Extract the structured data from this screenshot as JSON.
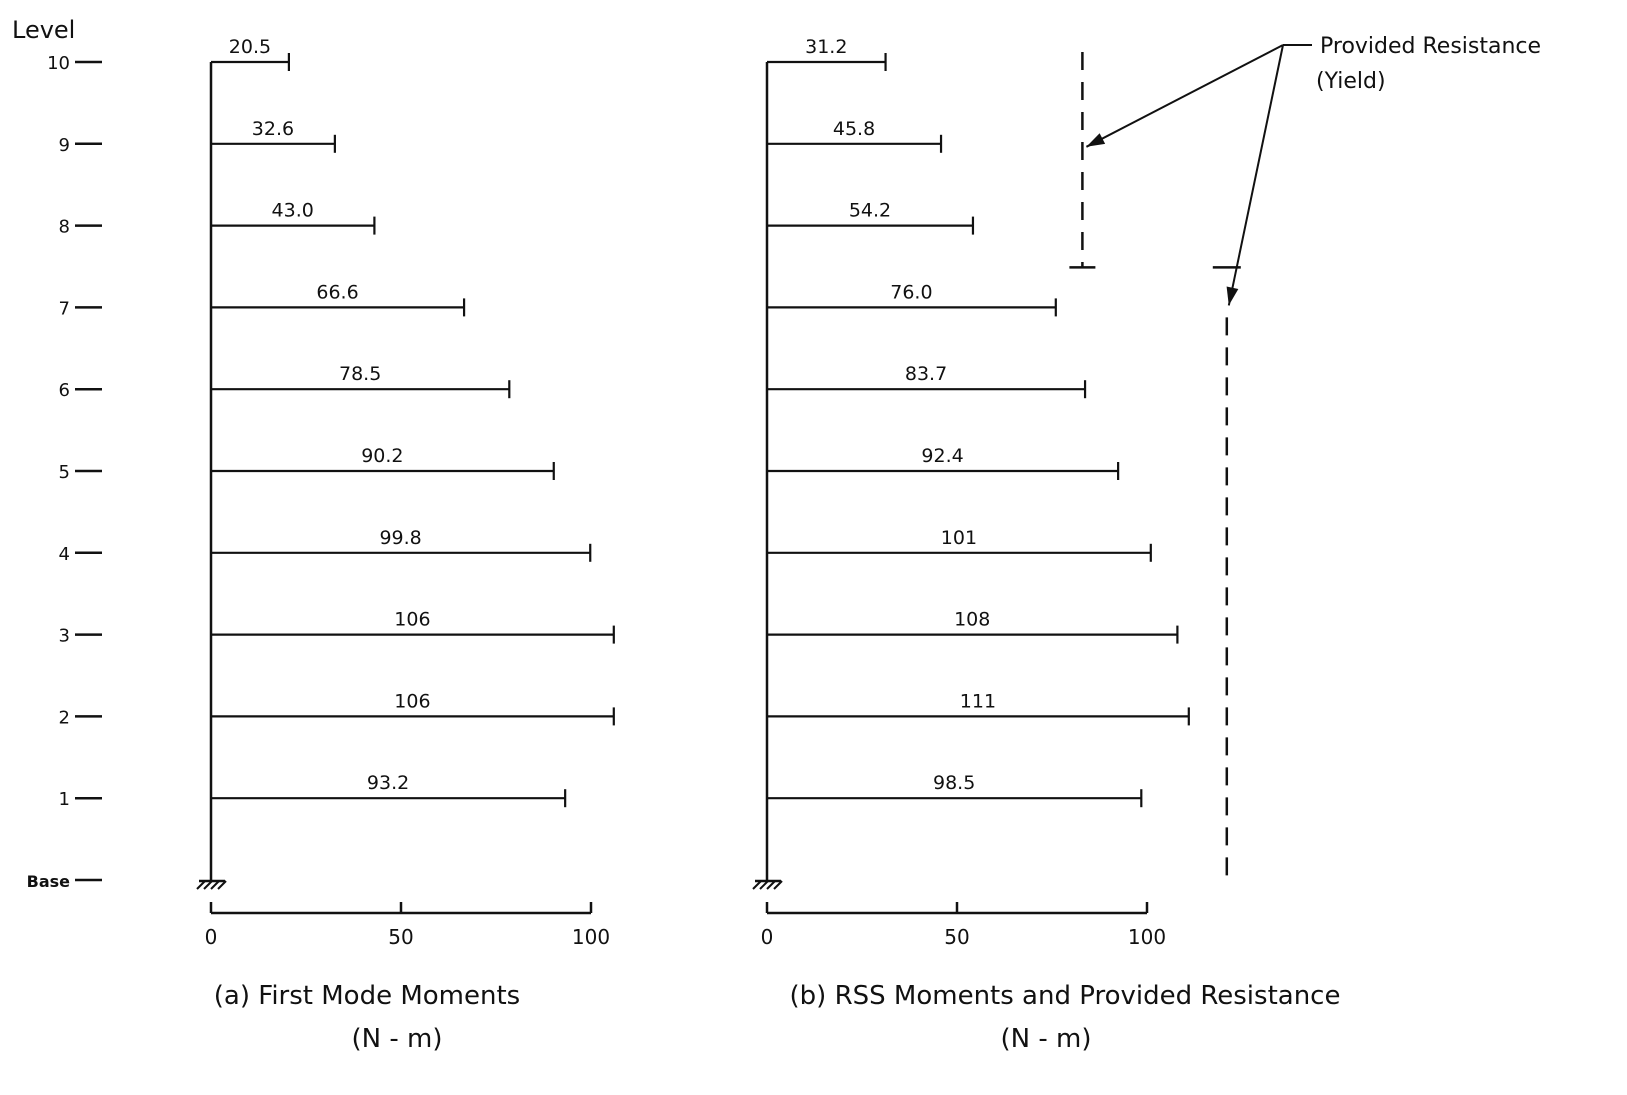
{
  "chart_data": [
    {
      "type": "bar",
      "orientation": "horizontal",
      "caption": "(a) First Mode Moments",
      "unit": "(N - m)",
      "ylabel": "Level",
      "levels": [
        "Base",
        "1",
        "2",
        "3",
        "4",
        "5",
        "6",
        "7",
        "8",
        "9",
        "10"
      ],
      "categories": [
        "1",
        "2",
        "3",
        "4",
        "5",
        "6",
        "7",
        "8",
        "9",
        "10"
      ],
      "values": [
        93.2,
        106,
        106,
        99.8,
        90.2,
        78.5,
        66.6,
        43.0,
        32.6,
        20.5
      ],
      "value_labels": [
        "93.2",
        "106",
        "106",
        "99.8",
        "90.2",
        "78.5",
        "66.6",
        "43.0",
        "32.6",
        "20.5"
      ],
      "xticks": [
        0,
        50,
        100
      ],
      "xtick_labels": [
        "0",
        "50",
        "100"
      ],
      "xlim": [
        0,
        100
      ]
    },
    {
      "type": "bar",
      "orientation": "horizontal",
      "caption": "(b) RSS Moments and Provided Resistance",
      "unit": "(N - m)",
      "categories": [
        "1",
        "2",
        "3",
        "4",
        "5",
        "6",
        "7",
        "8",
        "9",
        "10"
      ],
      "values": [
        98.5,
        111,
        108,
        101,
        92.4,
        83.7,
        76.0,
        54.2,
        45.8,
        31.2
      ],
      "value_labels": [
        "98.5",
        "111",
        "108",
        "101",
        "92.4",
        "83.7",
        "76.0",
        "54.2",
        "45.8",
        "31.2"
      ],
      "xticks": [
        0,
        50,
        100
      ],
      "xtick_labels": [
        "0",
        "50",
        "100"
      ],
      "xlim": [
        0,
        100
      ],
      "provided_resistance": {
        "label_line1": "Provided Resistance",
        "label_line2": "(Yield)",
        "segments": [
          {
            "levels": [
              "7",
              "10"
            ],
            "value": 83
          },
          {
            "levels": [
              "Base",
              "7"
            ],
            "value": 121
          }
        ]
      }
    }
  ]
}
